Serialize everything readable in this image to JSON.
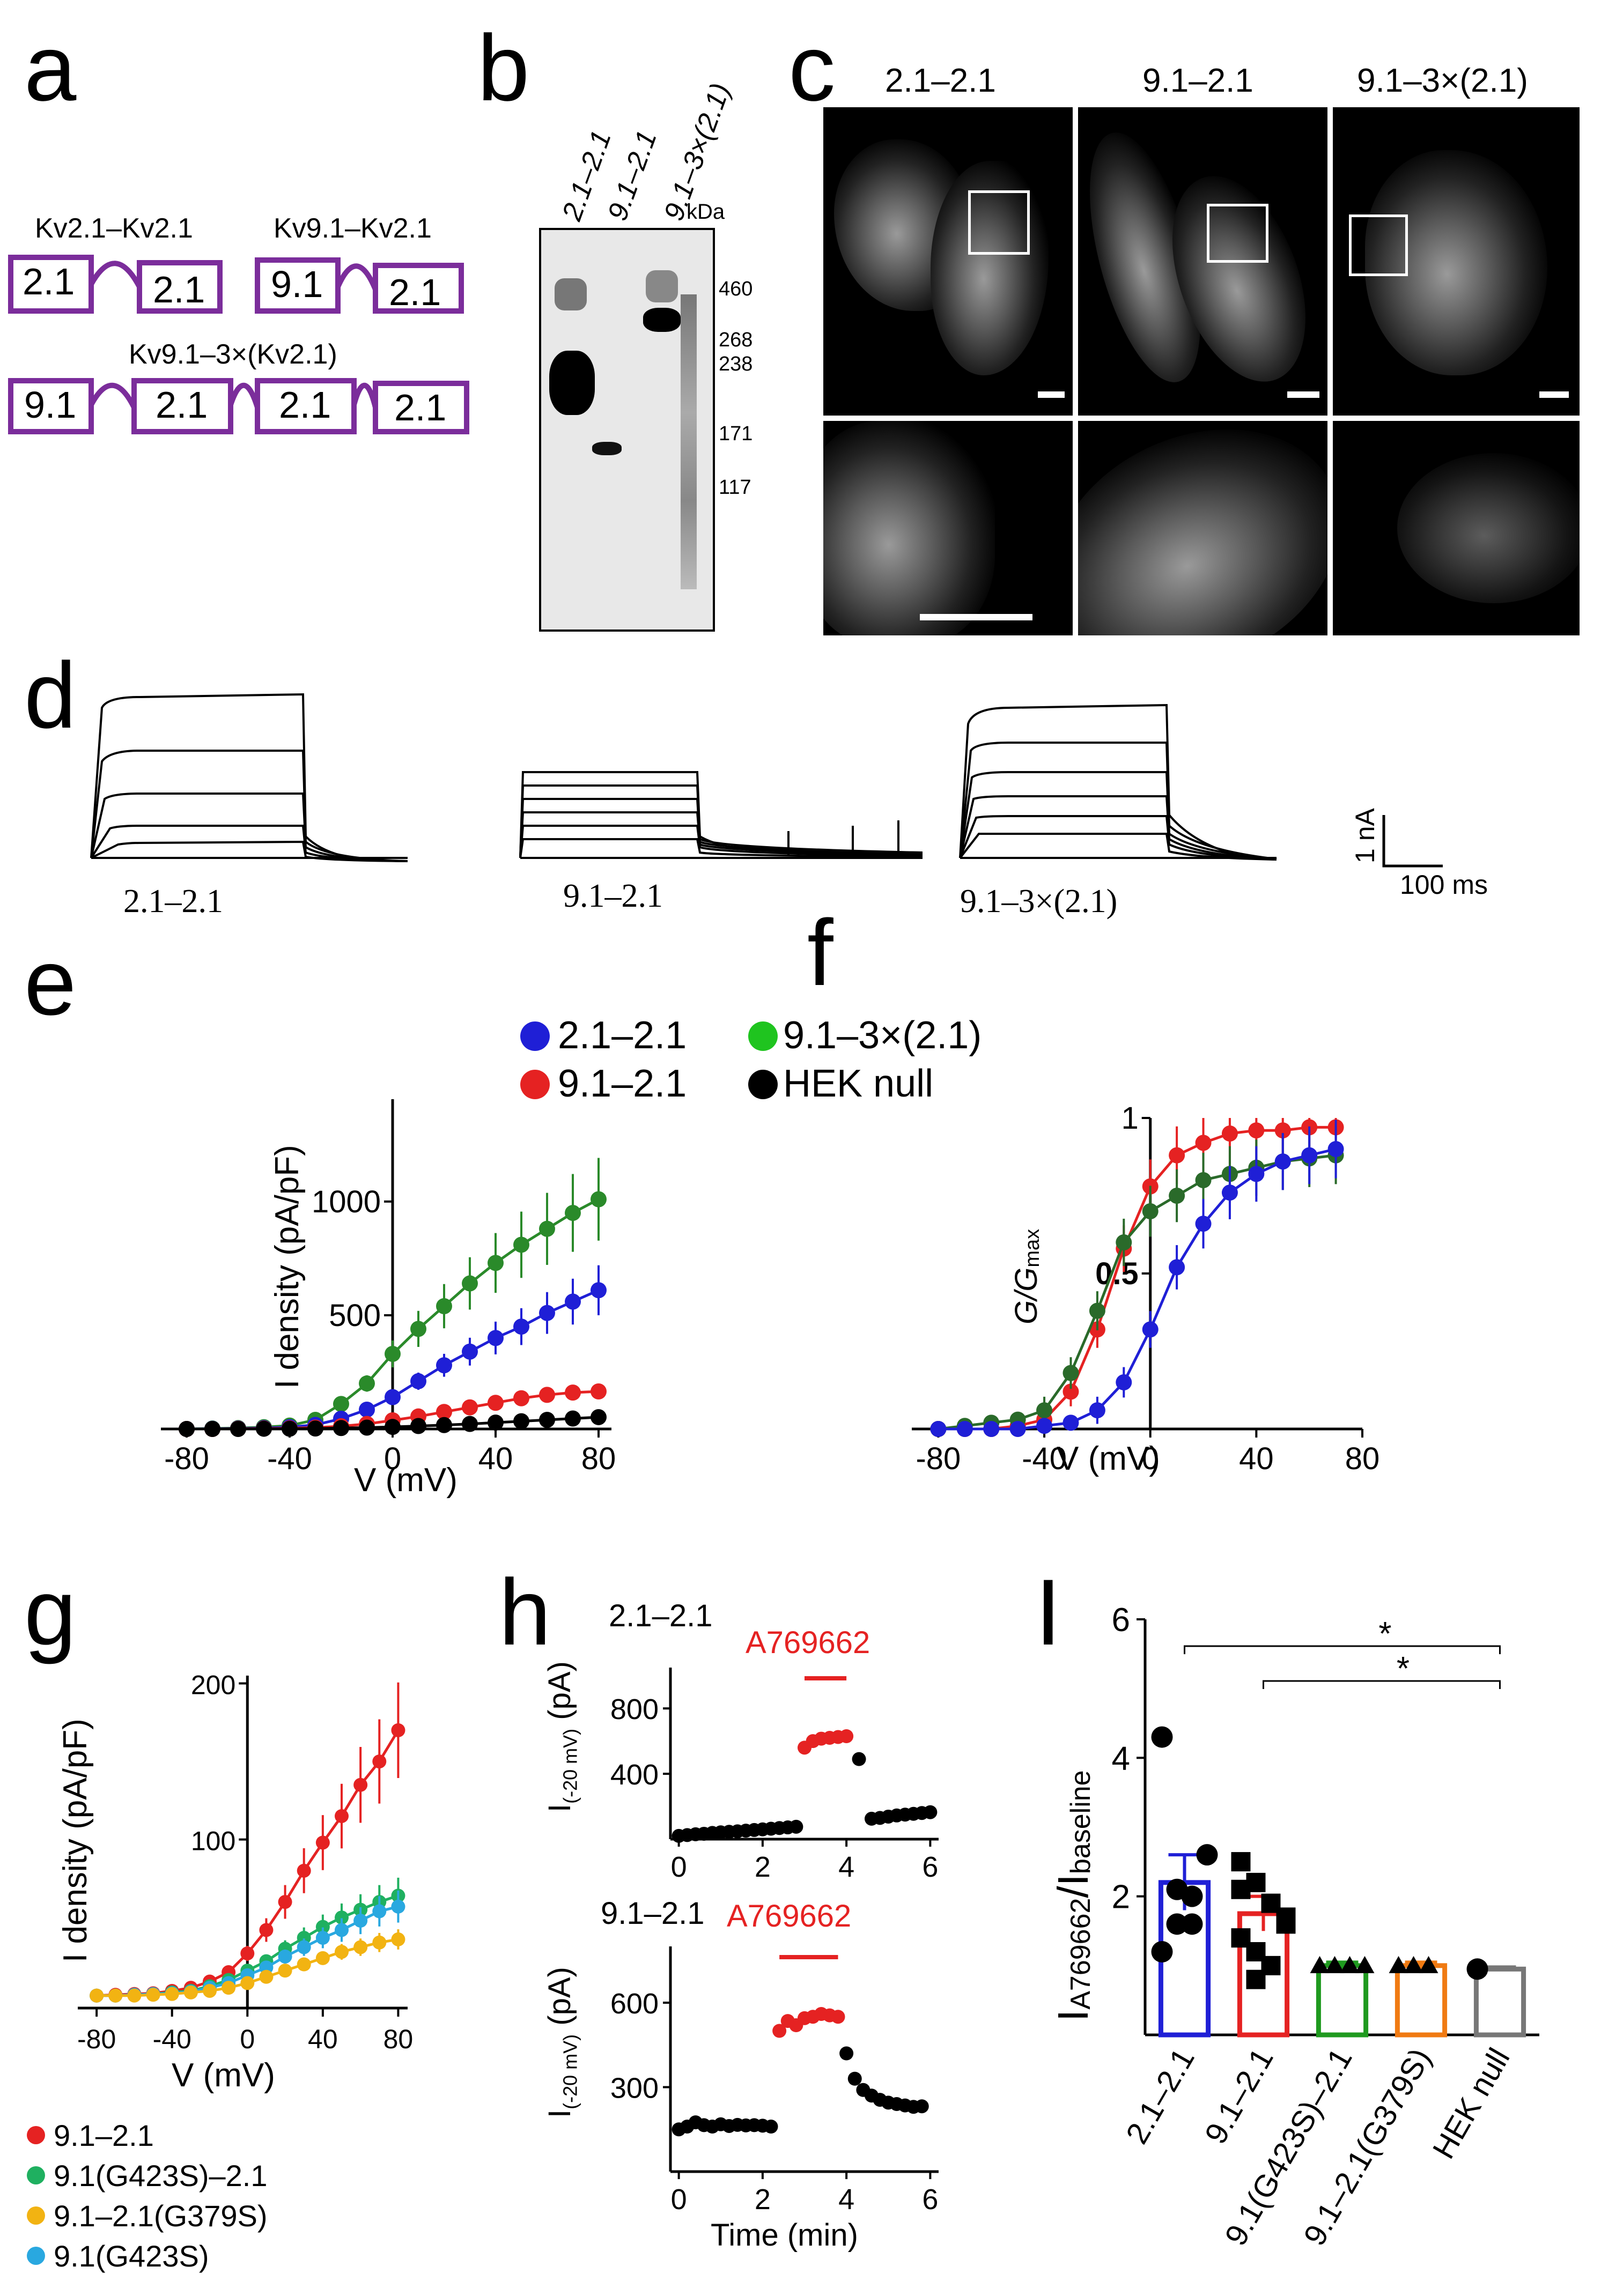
{
  "panels": {
    "a": "a",
    "b": "b",
    "c": "c",
    "d": "d",
    "e": "e",
    "f": "f",
    "g": "g",
    "h": "h",
    "i": "I"
  },
  "a": {
    "label1": "Kv2.1–Kv2.1",
    "label2": "Kv9.1–Kv2.1",
    "label3": "Kv9.1–3×(Kv2.1)",
    "box1": [
      "2.1",
      "2.1"
    ],
    "box2": [
      "9.1",
      "2.1"
    ],
    "box3": [
      "9.1",
      "2.1",
      "2.1",
      "2.1"
    ],
    "color": "#7b2d9b"
  },
  "b": {
    "lanes": [
      "2.1–2.1",
      "9.1–2.1",
      "9.1–3×(2.1)"
    ],
    "unit": "kDa",
    "markers": [
      "460",
      "268",
      "238",
      "171",
      "117"
    ]
  },
  "c": {
    "titles": [
      "2.1–2.1",
      "9.1–2.1",
      "9.1–3×(2.1)"
    ]
  },
  "d": {
    "labels": [
      "2.1–2.1",
      "9.1–2.1",
      "9.1–3×(2.1)"
    ],
    "scale_i": "1 nA",
    "scale_t": "100 ms"
  },
  "legend": {
    "items": [
      {
        "label": "2.1–2.1",
        "color": "#1f1fd6"
      },
      {
        "label": "9.1–3×(2.1)",
        "color": "#1fc41f"
      },
      {
        "label": "9.1–2.1",
        "color": "#e52222"
      },
      {
        "label": "HEK null",
        "color": "#000000"
      }
    ]
  },
  "chart_data": [
    {
      "id": "e",
      "type": "line",
      "title": "",
      "xlabel": "V (mV)",
      "ylabel": "I density (pA/pF)",
      "xlim": [
        -90,
        85
      ],
      "ylim": [
        0,
        1450
      ],
      "xticks": [
        "-80",
        "-40",
        "0",
        "40",
        "80"
      ],
      "yticks": [
        "500",
        "1000"
      ],
      "x": [
        -90,
        -80,
        -70,
        -60,
        -50,
        -40,
        -30,
        -20,
        -10,
        0,
        10,
        20,
        30,
        40,
        50,
        60,
        70,
        80
      ],
      "series": [
        {
          "name": "9.1–3×(2.1)",
          "color": "#2a8a2a",
          "values": [
            0,
            0,
            2,
            4,
            8,
            15,
            40,
            110,
            200,
            330,
            440,
            540,
            640,
            730,
            810,
            880,
            950,
            1010
          ]
        },
        {
          "name": "2.1–2.1",
          "color": "#1f1fd6",
          "values": [
            0,
            0,
            1,
            2,
            4,
            8,
            18,
            45,
            85,
            140,
            210,
            280,
            340,
            400,
            450,
            510,
            560,
            610
          ]
        },
        {
          "name": "9.1–2.1",
          "color": "#e52222",
          "values": [
            0,
            0,
            0,
            1,
            2,
            3,
            6,
            12,
            22,
            38,
            55,
            75,
            95,
            115,
            135,
            150,
            160,
            165
          ]
        },
        {
          "name": "HEK null",
          "color": "#000000",
          "values": [
            0,
            0,
            0,
            0,
            1,
            1,
            2,
            4,
            6,
            9,
            13,
            17,
            22,
            28,
            34,
            40,
            46,
            52
          ]
        }
      ]
    },
    {
      "id": "f",
      "type": "line",
      "title": "",
      "xlabel": "V (mV)",
      "ylabel": "G/Gmax",
      "xlim": [
        -90,
        80
      ],
      "ylim": [
        0,
        1
      ],
      "xticks": [
        "-80",
        "-40",
        "0",
        "40",
        "80"
      ],
      "yticks": [
        "0.5",
        "1"
      ],
      "x": [
        -80,
        -70,
        -60,
        -50,
        -40,
        -30,
        -20,
        -10,
        0,
        10,
        20,
        30,
        40,
        50,
        60,
        70
      ],
      "series": [
        {
          "name": "9.1–2.1",
          "color": "#e52222",
          "values": [
            0,
            0,
            0,
            0.01,
            0.03,
            0.12,
            0.32,
            0.58,
            0.78,
            0.88,
            0.92,
            0.95,
            0.96,
            0.96,
            0.97,
            0.97
          ]
        },
        {
          "name": "9.1–3×(2.1)",
          "color": "#2a6a2a",
          "values": [
            0,
            0.01,
            0.02,
            0.03,
            0.06,
            0.18,
            0.38,
            0.6,
            0.7,
            0.75,
            0.8,
            0.82,
            0.84,
            0.86,
            0.87,
            0.88
          ]
        },
        {
          "name": "2.1–2.1",
          "color": "#1f1fd6",
          "values": [
            0,
            0,
            0,
            0,
            0.01,
            0.02,
            0.06,
            0.15,
            0.32,
            0.52,
            0.66,
            0.76,
            0.82,
            0.86,
            0.88,
            0.9
          ]
        }
      ]
    },
    {
      "id": "g",
      "type": "line",
      "title": "",
      "xlabel": "V (mV)",
      "ylabel": "I density (pA/pF)",
      "xlim": [
        -90,
        85
      ],
      "ylim": [
        -8,
        205
      ],
      "xticks": [
        "-80",
        "-40",
        "0",
        "40",
        "80"
      ],
      "yticks": [
        "100",
        "200"
      ],
      "x": [
        -80,
        -70,
        -60,
        -50,
        -40,
        -30,
        -20,
        -10,
        0,
        10,
        20,
        30,
        40,
        50,
        60,
        70,
        80
      ],
      "series": [
        {
          "name": "9.1–2.1",
          "color": "#e52222",
          "values": [
            0,
            0.5,
            1,
            1.5,
            3,
            5,
            9,
            15,
            27,
            42,
            60,
            80,
            98,
            115,
            135,
            150,
            170
          ]
        },
        {
          "name": "9.1(G423S)–2.1",
          "color": "#1fb060",
          "values": [
            0,
            0,
            0.5,
            1,
            2,
            3,
            6,
            10,
            16,
            22,
            30,
            37,
            44,
            50,
            55,
            60,
            64
          ]
        },
        {
          "name": "9.1(G423S)",
          "color": "#29a8e0",
          "values": [
            0,
            0,
            0.5,
            1,
            1.5,
            2.5,
            5,
            8,
            13,
            18,
            25,
            31,
            37,
            42,
            48,
            54,
            57
          ]
        },
        {
          "name": "9.1–2.1(G379S)",
          "color": "#f2b312",
          "values": [
            0,
            0,
            0,
            0.5,
            1,
            2,
            3,
            5,
            8,
            12,
            16,
            20,
            24,
            28,
            31,
            34,
            36
          ]
        }
      ]
    },
    {
      "id": "h1",
      "type": "scatter",
      "title": "2.1–2.1",
      "xlabel": "",
      "ylabel": "I(-20 mV) (pA)",
      "xlim": [
        -0.2,
        6.2
      ],
      "ylim": [
        0,
        1050
      ],
      "xticks": [
        "0",
        "2",
        "4",
        "6"
      ],
      "yticks": [
        "400",
        "800"
      ],
      "bar_label": "A769662",
      "series": [
        {
          "name": "baseline",
          "color": "#000000",
          "x": [
            0,
            0.2,
            0.4,
            0.6,
            0.8,
            1,
            1.2,
            1.4,
            1.6,
            1.8,
            2,
            2.2,
            2.4,
            2.6,
            2.8
          ],
          "y": [
            20,
            25,
            30,
            33,
            38,
            42,
            45,
            48,
            52,
            56,
            60,
            64,
            68,
            72,
            76
          ]
        },
        {
          "name": "A769662",
          "color": "#e52222",
          "x": [
            3.0,
            3.2,
            3.4,
            3.6,
            3.8,
            4.0
          ],
          "y": [
            560,
            600,
            615,
            620,
            625,
            630
          ]
        },
        {
          "name": "washout",
          "color": "#000000",
          "x": [
            4.3,
            4.6,
            4.8,
            5.0,
            5.2,
            5.4,
            5.6,
            5.8,
            6.0
          ],
          "y": [
            490,
            125,
            130,
            138,
            145,
            150,
            155,
            160,
            165
          ]
        }
      ]
    },
    {
      "id": "h2",
      "type": "scatter",
      "title": "9.1–2.1",
      "xlabel": "Time (min)",
      "ylabel": "I(-20 mV) (pA)",
      "xlim": [
        -0.2,
        6.2
      ],
      "ylim": [
        0,
        800
      ],
      "xticks": [
        "0",
        "2",
        "4",
        "6"
      ],
      "yticks": [
        "300",
        "600"
      ],
      "bar_label": "A769662",
      "series": [
        {
          "name": "baseline",
          "color": "#000000",
          "x": [
            0,
            0.2,
            0.4,
            0.6,
            0.8,
            1,
            1.2,
            1.4,
            1.6,
            1.8,
            2,
            2.2
          ],
          "y": [
            150,
            160,
            175,
            165,
            160,
            168,
            162,
            166,
            164,
            165,
            163,
            160
          ]
        },
        {
          "name": "A769662",
          "color": "#e52222",
          "x": [
            2.4,
            2.6,
            2.8,
            3.0,
            3.2,
            3.4,
            3.6,
            3.8
          ],
          "y": [
            500,
            535,
            520,
            545,
            550,
            560,
            555,
            550
          ]
        },
        {
          "name": "washout",
          "color": "#000000",
          "x": [
            4.0,
            4.2,
            4.4,
            4.6,
            4.8,
            5.0,
            5.2,
            5.4,
            5.6,
            5.8
          ],
          "y": [
            420,
            330,
            290,
            270,
            255,
            245,
            240,
            235,
            230,
            232
          ]
        }
      ]
    },
    {
      "id": "i",
      "type": "bar",
      "title": "",
      "ylabel": "IA769662/Ibaseline",
      "ylim": [
        0,
        6
      ],
      "yticks": [
        "2",
        "4",
        "6"
      ],
      "categories": [
        "2.1–2.1",
        "9.1–2.1",
        "9.1(G423S)–2.1",
        "9.1–2.1(G379S)",
        "HEK null"
      ],
      "values": [
        2.2,
        1.75,
        1.0,
        1.0,
        0.95
      ],
      "errors": [
        0.4,
        0.25,
        0.05,
        0.05,
        0.03
      ],
      "colors": [
        "#1f1fd6",
        "#e52222",
        "#1f9a1f",
        "#f07a12",
        "#777777"
      ],
      "significance": [
        {
          "from": "2.1–2.1",
          "to": "HEK null",
          "label": "*"
        },
        {
          "from": "9.1–2.1",
          "to": "HEK null",
          "label": "*"
        }
      ]
    }
  ],
  "ylabel_parts": {
    "e": "I density (pA/pF)",
    "g": "I density (pA/pF)",
    "f_g": "G/G",
    "f_sub": "max",
    "h_i": "I",
    "h_sub": "(-20 mV)",
    "h_unit": " (pA)",
    "i_main": "I",
    "i_sub": "A769662",
    "i_slash": "/I",
    "i_sub2": "baseline"
  },
  "g_legend": [
    {
      "label": "9.1–2.1",
      "color": "#e52222"
    },
    {
      "label": "9.1(G423S)–2.1",
      "color": "#1fb060"
    },
    {
      "label": "9.1–2.1(G379S)",
      "color": "#f2b312"
    },
    {
      "label": "9.1(G423S)",
      "color": "#29a8e0"
    }
  ],
  "h": {
    "title1": "2.1–2.1",
    "title2": "9.1–2.1",
    "bar_label": "A769662",
    "xlabel": "Time (min)"
  }
}
